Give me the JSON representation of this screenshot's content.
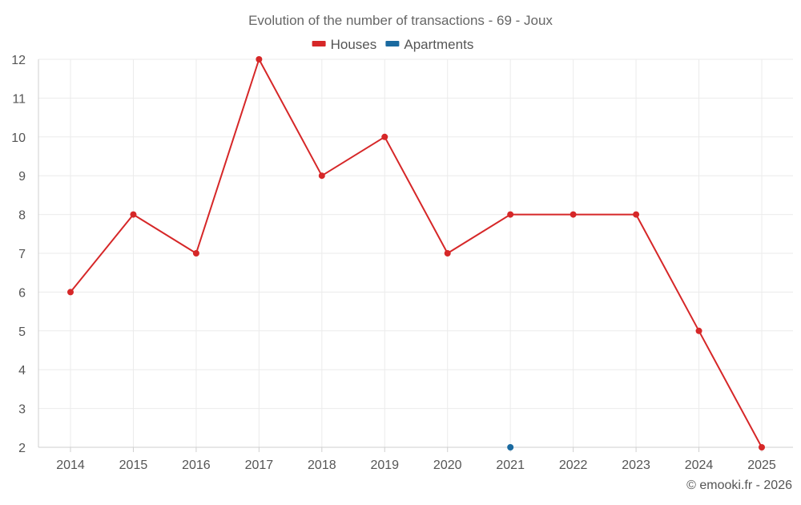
{
  "chart_data": {
    "type": "line",
    "title": "Evolution of the number of transactions - 69 - Joux",
    "credit": "© emooki.fr - 2026",
    "x": [
      "2014",
      "2015",
      "2016",
      "2017",
      "2018",
      "2019",
      "2020",
      "2021",
      "2022",
      "2023",
      "2024",
      "2025"
    ],
    "ylim": [
      2,
      12
    ],
    "yticks": [
      "2",
      "3",
      "4",
      "5",
      "6",
      "7",
      "8",
      "9",
      "10",
      "11",
      "12"
    ],
    "grid": true,
    "legend_position": "top-center",
    "series": [
      {
        "name": "Houses",
        "color": "#d62728",
        "values": [
          6,
          8,
          7,
          12,
          9,
          10,
          7,
          8,
          8,
          8,
          5,
          2
        ]
      },
      {
        "name": "Apartments",
        "color": "#1a6aa0",
        "values": [
          null,
          null,
          null,
          null,
          null,
          null,
          null,
          2,
          null,
          null,
          null,
          null
        ]
      }
    ]
  }
}
